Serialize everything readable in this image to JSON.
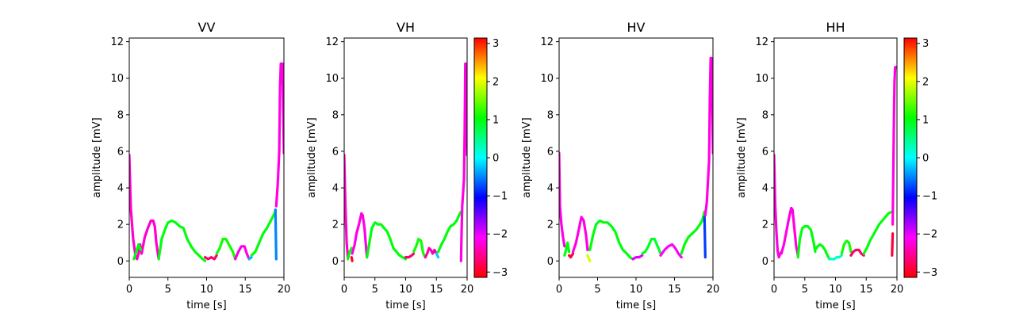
{
  "chart_data": [
    {
      "type": "line",
      "title": "VV",
      "xlabel": "time [s]",
      "ylabel": "amplitude [mV]",
      "xlim": [
        0,
        20
      ],
      "ylim": [
        -0.9,
        12.2
      ],
      "xticks": [
        "0",
        "5",
        "10",
        "15",
        "20"
      ],
      "yticks": [
        "0",
        "2",
        "4",
        "6",
        "8",
        "10",
        "12"
      ],
      "colorbar": false,
      "segments": [
        {
          "x": [
            0,
            0.2,
            0.5,
            0.8,
            1.0,
            1.2,
            1.4,
            1.6,
            2.0,
            2.4,
            2.8,
            3.1,
            3.3,
            3.5,
            3.7,
            3.8
          ],
          "y": [
            5.8,
            2.9,
            1.2,
            0.3,
            0.1,
            0.4,
            0.9,
            0.4,
            1.3,
            1.8,
            2.2,
            2.2,
            1.9,
            1.0,
            0.4,
            0.1
          ],
          "phase": -2.3
        },
        {
          "x": [
            0.6,
            0.9,
            1.2,
            1.5
          ],
          "y": [
            0.1,
            0.5,
            0.9,
            0.6
          ],
          "phase": 1.0
        },
        {
          "x": [
            3.8,
            4.2,
            4.6,
            5.0,
            5.5,
            6.0,
            6.5,
            7.0,
            7.5,
            8.0,
            8.5,
            9.0,
            9.5,
            9.8
          ],
          "y": [
            0.1,
            1.2,
            1.7,
            2.1,
            2.2,
            2.1,
            1.9,
            1.8,
            1.2,
            0.8,
            0.5,
            0.3,
            0.1,
            0.0
          ],
          "phase": 1.0
        },
        {
          "x": [
            9.8,
            10.2,
            10.6,
            11.0,
            11.3
          ],
          "y": [
            0.2,
            0.1,
            0.2,
            0.1,
            0.3
          ],
          "phase": -2.7
        },
        {
          "x": [
            11.3,
            11.7,
            12.1,
            12.5,
            13.0,
            13.4,
            13.7
          ],
          "y": [
            0.4,
            0.7,
            1.2,
            1.2,
            0.8,
            0.5,
            0.1
          ],
          "phase": 1.1
        },
        {
          "x": [
            13.7,
            14.1,
            14.5,
            14.9,
            15.2,
            15.5
          ],
          "y": [
            0.1,
            0.5,
            0.8,
            0.8,
            0.4,
            0.1
          ],
          "phase": -2.2
        },
        {
          "x": [
            15.5,
            15.8
          ],
          "y": [
            0.1,
            0.2
          ],
          "phase": -0.3
        },
        {
          "x": [
            15.8,
            16.3,
            16.8,
            17.3,
            17.8,
            18.3,
            18.8,
            18.9
          ],
          "y": [
            0.3,
            0.5,
            1.0,
            1.5,
            1.8,
            2.2,
            2.6,
            2.8
          ],
          "phase": 1.0
        },
        {
          "x": [
            18.9,
            19.0
          ],
          "y": [
            2.8,
            0.1
          ],
          "phase": -0.5
        },
        {
          "x": [
            19.0,
            19.2,
            19.4,
            19.5,
            19.6,
            19.8,
            20.0
          ],
          "y": [
            3.0,
            4.2,
            6.0,
            9.5,
            10.8,
            10.8,
            5.9
          ],
          "phase": -2.2
        }
      ]
    },
    {
      "type": "line",
      "title": "VH",
      "xlabel": "time [s]",
      "ylabel": "amplitude [mV]",
      "xlim": [
        0,
        20
      ],
      "ylim": [
        -0.9,
        12.2
      ],
      "xticks": [
        "0",
        "5",
        "10",
        "15",
        "20"
      ],
      "yticks": [
        "0",
        "2",
        "4",
        "6",
        "8",
        "10",
        "12"
      ],
      "colorbar": true,
      "colorbar_ticks": [
        "3",
        "2",
        "1",
        "0",
        "−1",
        "−2",
        "−3"
      ],
      "colorbar_range": [
        -3.14,
        3.14
      ],
      "segments": [
        {
          "x": [
            0,
            0.2,
            0.4,
            0.6
          ],
          "y": [
            5.8,
            2.9,
            1.0,
            0.2
          ],
          "phase": -2.3
        },
        {
          "x": [
            0.6,
            0.9,
            1.2
          ],
          "y": [
            0.1,
            0.5,
            0.7
          ],
          "phase": 1.0
        },
        {
          "x": [
            1.2,
            1.3
          ],
          "y": [
            0.2,
            0.0
          ],
          "phase": -2.9
        },
        {
          "x": [
            1.3,
            1.7,
            2.0,
            2.4,
            2.8,
            3.0,
            3.3,
            3.5,
            3.7
          ],
          "y": [
            0.4,
            0.9,
            1.5,
            2.0,
            2.6,
            2.5,
            1.8,
            1.0,
            0.2
          ],
          "phase": -2.2
        },
        {
          "x": [
            3.7,
            4.1,
            4.5,
            5.0,
            5.5,
            6.0,
            6.5,
            7.0,
            7.5,
            8.0,
            8.5,
            9.0,
            9.5,
            10.0
          ],
          "y": [
            0.2,
            1.0,
            1.8,
            2.1,
            2.0,
            2.0,
            1.8,
            1.6,
            1.2,
            0.7,
            0.5,
            0.3,
            0.2,
            0.1
          ],
          "phase": 1.0
        },
        {
          "x": [
            10.0,
            10.5,
            11.0,
            11.3
          ],
          "y": [
            0.2,
            0.2,
            0.3,
            0.4
          ],
          "phase": -2.7
        },
        {
          "x": [
            11.3,
            11.7,
            12.1,
            12.5,
            12.8,
            13.0,
            13.2
          ],
          "y": [
            0.5,
            0.8,
            1.2,
            1.1,
            0.5,
            0.3,
            0.2
          ],
          "phase": 1.1
        },
        {
          "x": [
            13.2,
            13.5,
            13.8,
            14.1,
            14.4,
            14.7,
            15.0
          ],
          "y": [
            0.2,
            0.4,
            0.7,
            0.6,
            0.4,
            0.6,
            0.4
          ],
          "phase": -2.4
        },
        {
          "x": [
            15.0,
            15.3
          ],
          "y": [
            0.4,
            0.2
          ],
          "phase": -0.2
        },
        {
          "x": [
            15.3,
            15.8,
            16.3,
            16.8,
            17.3,
            17.8,
            18.3,
            18.7,
            19.0
          ],
          "y": [
            0.5,
            0.9,
            1.2,
            1.6,
            1.9,
            2.0,
            2.2,
            2.5,
            2.7
          ],
          "phase": 1.0
        },
        {
          "x": [
            19.0,
            19.1,
            19.2,
            19.5,
            19.6,
            19.7,
            19.8,
            20.0
          ],
          "y": [
            0.0,
            1.5,
            3.0,
            4.5,
            7.0,
            10.8,
            10.8,
            5.8
          ],
          "phase": -2.2
        }
      ]
    },
    {
      "type": "line",
      "title": "HV",
      "xlabel": "time [s]",
      "ylabel": "amplitude [mV]",
      "xlim": [
        0,
        20
      ],
      "ylim": [
        -0.9,
        12.2
      ],
      "xticks": [
        "0",
        "5",
        "10",
        "15",
        "20"
      ],
      "yticks": [
        "0",
        "2",
        "4",
        "6",
        "8",
        "10",
        "12"
      ],
      "colorbar": false,
      "segments": [
        {
          "x": [
            0,
            0.1,
            0.3,
            0.5,
            0.7
          ],
          "y": [
            5.9,
            3.0,
            2.0,
            1.3,
            0.8
          ],
          "phase": -2.2
        },
        {
          "x": [
            0.7,
            0.9,
            1.1,
            1.3
          ],
          "y": [
            0.3,
            0.6,
            1.0,
            0.5
          ],
          "phase": 1.0
        },
        {
          "x": [
            1.3,
            1.5,
            1.8
          ],
          "y": [
            0.3,
            0.2,
            0.4
          ],
          "phase": -2.9
        },
        {
          "x": [
            1.8,
            2.2,
            2.6,
            2.9,
            3.2,
            3.5,
            3.7
          ],
          "y": [
            0.5,
            1.0,
            1.8,
            2.4,
            2.2,
            1.4,
            0.6
          ],
          "phase": -2.2
        },
        {
          "x": [
            3.7,
            4.0
          ],
          "y": [
            0.3,
            0.0
          ],
          "phase": 1.9
        },
        {
          "x": [
            4.0,
            4.4,
            4.8,
            5.3,
            5.8,
            6.3,
            6.8,
            7.3,
            7.8,
            8.3,
            8.8,
            9.2,
            9.6
          ],
          "y": [
            0.6,
            1.4,
            2.0,
            2.2,
            2.1,
            2.1,
            1.9,
            1.6,
            1.0,
            0.6,
            0.4,
            0.2,
            0.1
          ],
          "phase": 1.0
        },
        {
          "x": [
            9.6,
            10.0,
            10.4,
            10.8
          ],
          "y": [
            0.1,
            0.2,
            0.2,
            0.3
          ],
          "phase": -2.0
        },
        {
          "x": [
            10.8,
            11.2,
            11.6,
            12.0,
            12.4,
            12.8,
            13.2
          ],
          "y": [
            0.4,
            0.5,
            0.8,
            1.2,
            1.2,
            0.8,
            0.4
          ],
          "phase": 0.9
        },
        {
          "x": [
            13.2,
            13.7,
            14.2,
            14.7,
            15.1,
            15.5,
            15.9
          ],
          "y": [
            0.3,
            0.6,
            0.8,
            0.9,
            0.7,
            0.4,
            0.2
          ],
          "phase": -2.1
        },
        {
          "x": [
            15.9,
            16.3,
            16.8,
            17.3,
            17.8,
            18.3,
            18.6,
            18.9
          ],
          "y": [
            0.4,
            0.9,
            1.3,
            1.5,
            1.7,
            2.0,
            2.2,
            2.7
          ],
          "phase": 1.0
        },
        {
          "x": [
            18.9,
            19.0
          ],
          "y": [
            2.4,
            0.2
          ],
          "phase": -0.8
        },
        {
          "x": [
            19.0,
            19.2,
            19.5,
            19.6,
            19.7,
            19.8,
            20.0
          ],
          "y": [
            2.5,
            3.2,
            5.5,
            9.0,
            11.1,
            11.1,
            5.9
          ],
          "phase": -2.2
        }
      ]
    },
    {
      "type": "line",
      "title": "HH",
      "xlabel": "time [s]",
      "ylabel": "amplitude [mV]",
      "xlim": [
        0,
        20
      ],
      "ylim": [
        -0.9,
        12.2
      ],
      "xticks": [
        "0",
        "5",
        "10",
        "15",
        "20"
      ],
      "yticks": [
        "0",
        "2",
        "4",
        "6",
        "8",
        "10",
        "12"
      ],
      "colorbar": true,
      "colorbar_ticks": [
        "3",
        "2",
        "1",
        "0",
        "−1",
        "−2",
        "−3"
      ],
      "colorbar_range": [
        -3.14,
        3.14
      ],
      "segments": [
        {
          "x": [
            0,
            0.2,
            0.4,
            0.6,
            0.8,
            1.0,
            1.2
          ],
          "y": [
            5.8,
            3.0,
            1.5,
            0.5,
            0.2,
            0.4,
            0.5
          ],
          "phase": -2.2
        },
        {
          "x": [
            1.2,
            1.6,
            2.0,
            2.4,
            2.8,
            3.0,
            3.3,
            3.6,
            3.9
          ],
          "y": [
            0.4,
            0.9,
            1.6,
            2.3,
            2.9,
            2.8,
            1.8,
            0.8,
            0.3
          ],
          "phase": -2.2
        },
        {
          "x": [
            3.9,
            4.2,
            4.6,
            5.0,
            5.5,
            6.0,
            6.4,
            6.7
          ],
          "y": [
            0.2,
            1.2,
            1.8,
            1.9,
            1.9,
            1.7,
            1.1,
            0.5
          ],
          "phase": 1.0
        },
        {
          "x": [
            6.7,
            7.1,
            7.5,
            7.9,
            8.3,
            8.7,
            9.0
          ],
          "y": [
            0.6,
            0.8,
            0.9,
            0.8,
            0.6,
            0.3,
            0.1
          ],
          "phase": 1.0
        },
        {
          "x": [
            9.0,
            9.4,
            9.8,
            10.2,
            10.6,
            11.0
          ],
          "y": [
            0.1,
            0.1,
            0.1,
            0.2,
            0.2,
            0.3
          ],
          "phase": 0.2
        },
        {
          "x": [
            11.0,
            11.4,
            11.8,
            12.2,
            12.5
          ],
          "y": [
            0.4,
            0.9,
            1.1,
            1.0,
            0.5
          ],
          "phase": 1.1
        },
        {
          "x": [
            12.5,
            12.9,
            13.3,
            13.8,
            14.2,
            14.6
          ],
          "y": [
            0.3,
            0.5,
            0.6,
            0.6,
            0.4,
            0.3
          ],
          "phase": -2.7
        },
        {
          "x": [
            14.6,
            15.1,
            15.6,
            16.1,
            16.6,
            17.1,
            17.6,
            18.1,
            18.6,
            19.2
          ],
          "y": [
            0.4,
            0.7,
            1.1,
            1.4,
            1.7,
            2.0,
            2.2,
            2.4,
            2.6,
            2.7
          ],
          "phase": 1.0
        },
        {
          "x": [
            19.2,
            19.3
          ],
          "y": [
            0.3,
            1.5
          ],
          "phase": -2.9
        },
        {
          "x": [
            19.3,
            19.4,
            19.5,
            19.6,
            19.7,
            19.9
          ],
          "y": [
            2.0,
            4.5,
            7.5,
            9.8,
            10.6,
            10.6
          ],
          "phase": -2.2
        }
      ]
    }
  ]
}
